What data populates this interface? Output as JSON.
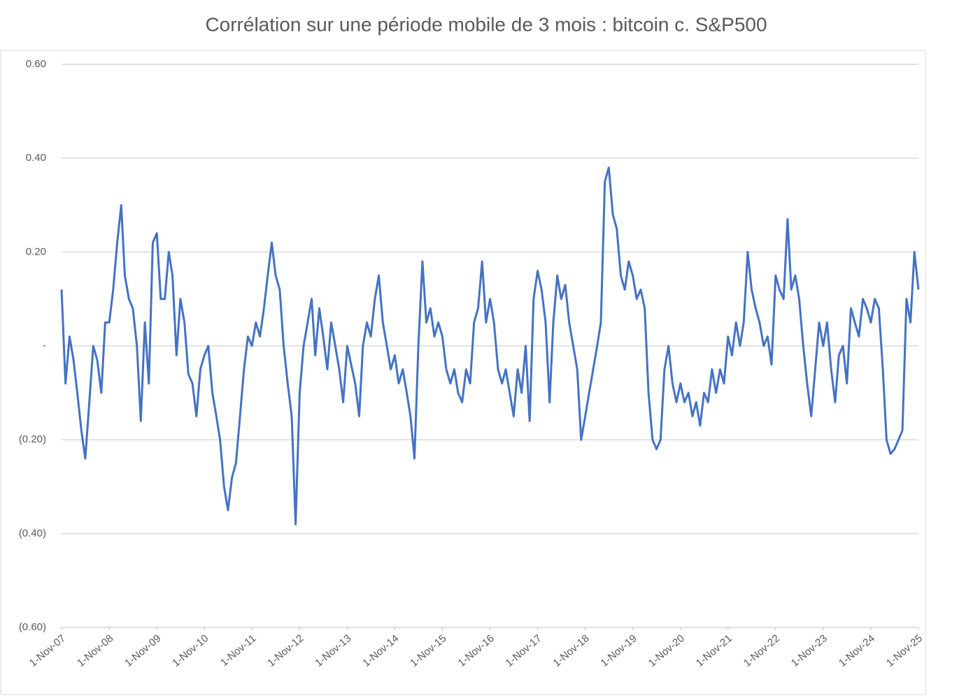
{
  "chart_data": {
    "type": "line",
    "title": "Corrélation sur une période mobile de 3 mois : bitcoin c. S&P500",
    "x": [
      "2007-11-01",
      "2007-12-01",
      "2008-01-01",
      "2008-02-01",
      "2008-03-01",
      "2008-04-01",
      "2008-05-01",
      "2008-06-01",
      "2008-07-01",
      "2008-08-01",
      "2008-09-01",
      "2008-10-01",
      "2008-11-01",
      "2008-12-01",
      "2009-01-01",
      "2009-02-01",
      "2009-03-01",
      "2009-04-01",
      "2009-05-01",
      "2009-06-01",
      "2009-07-01",
      "2009-08-01",
      "2009-09-01",
      "2009-10-01",
      "2009-11-01",
      "2009-12-01",
      "2010-01-01",
      "2010-02-01",
      "2010-03-01",
      "2010-04-01",
      "2010-05-01",
      "2010-06-01",
      "2010-07-01",
      "2010-08-01",
      "2010-09-01",
      "2010-10-01",
      "2010-11-01",
      "2010-12-01",
      "2011-01-01",
      "2011-02-01",
      "2011-03-01",
      "2011-04-01",
      "2011-05-01",
      "2011-06-01",
      "2011-07-01",
      "2011-08-01",
      "2011-09-01",
      "2011-10-01",
      "2011-11-01",
      "2011-12-01",
      "2012-01-01",
      "2012-02-01",
      "2012-03-01",
      "2012-04-01",
      "2012-05-01",
      "2012-06-01",
      "2012-07-01",
      "2012-08-01",
      "2012-09-01",
      "2012-10-01",
      "2012-11-01",
      "2012-12-01",
      "2013-01-01",
      "2013-02-01",
      "2013-03-01",
      "2013-04-01",
      "2013-05-01",
      "2013-06-01",
      "2013-07-01",
      "2013-08-01",
      "2013-09-01",
      "2013-10-01",
      "2013-11-01",
      "2013-12-01",
      "2014-01-01",
      "2014-02-01",
      "2014-03-01",
      "2014-04-01",
      "2014-05-01",
      "2014-06-01",
      "2014-07-01",
      "2014-08-01",
      "2014-09-01",
      "2014-10-01",
      "2014-11-01",
      "2014-12-01",
      "2015-01-01",
      "2015-02-01",
      "2015-03-01",
      "2015-04-01",
      "2015-05-01",
      "2015-06-01",
      "2015-07-01",
      "2015-08-01",
      "2015-09-01",
      "2015-10-01",
      "2015-11-01",
      "2015-12-01",
      "2016-01-01",
      "2016-02-01",
      "2016-03-01",
      "2016-04-01",
      "2016-05-01",
      "2016-06-01",
      "2016-07-01",
      "2016-08-01",
      "2016-09-01",
      "2016-10-01",
      "2016-11-01",
      "2016-12-01",
      "2017-01-01",
      "2017-02-01",
      "2017-03-01",
      "2017-04-01",
      "2017-05-01",
      "2017-06-01",
      "2017-07-01",
      "2017-08-01",
      "2017-09-01",
      "2017-10-01",
      "2017-11-01",
      "2017-12-01",
      "2018-01-01",
      "2018-02-01",
      "2018-03-01",
      "2018-04-01",
      "2018-05-01",
      "2018-06-01",
      "2018-07-01",
      "2018-08-01",
      "2018-09-01",
      "2018-10-01",
      "2018-11-01",
      "2018-12-01",
      "2019-01-01",
      "2019-02-01",
      "2019-03-01",
      "2019-04-01",
      "2019-05-01",
      "2019-06-01",
      "2019-07-01",
      "2019-08-01",
      "2019-09-01",
      "2019-10-01",
      "2019-11-01",
      "2019-12-01",
      "2020-01-01",
      "2020-02-01",
      "2020-03-01",
      "2020-04-01",
      "2020-05-01",
      "2020-06-01",
      "2020-07-01",
      "2020-08-01",
      "2020-09-01",
      "2020-10-01",
      "2020-11-01",
      "2020-12-01",
      "2021-01-01",
      "2021-02-01",
      "2021-03-01",
      "2021-04-01",
      "2021-05-01",
      "2021-06-01",
      "2021-07-01",
      "2021-08-01",
      "2021-09-01",
      "2021-10-01",
      "2021-11-01",
      "2021-12-01",
      "2022-01-01",
      "2022-02-01",
      "2022-03-01",
      "2022-04-01",
      "2022-05-01",
      "2022-06-01",
      "2022-07-01",
      "2022-08-01",
      "2022-09-01",
      "2022-10-01",
      "2022-11-01",
      "2022-12-01",
      "2023-01-01",
      "2023-02-01",
      "2023-03-01",
      "2023-04-01",
      "2023-05-01",
      "2023-06-01",
      "2023-07-01",
      "2023-08-01",
      "2023-09-01",
      "2023-10-01",
      "2023-11-01",
      "2023-12-01",
      "2024-01-01",
      "2024-02-01",
      "2024-03-01",
      "2024-04-01",
      "2024-05-01",
      "2024-06-01",
      "2024-07-01",
      "2024-08-01",
      "2024-09-01",
      "2024-10-01",
      "2024-11-01",
      "2024-12-01",
      "2025-01-01",
      "2025-02-01",
      "2025-03-01",
      "2025-04-01",
      "2025-05-01",
      "2025-06-01",
      "2025-07-01",
      "2025-08-01",
      "2025-09-01",
      "2025-10-01",
      "2025-11-01"
    ],
    "series": [
      {
        "color": "#4472c4",
        "values": [
          0.12,
          -0.08,
          0.02,
          -0.03,
          -0.1,
          -0.18,
          -0.24,
          -0.12,
          0.0,
          -0.03,
          -0.1,
          0.05,
          0.05,
          0.12,
          0.22,
          0.3,
          0.15,
          0.1,
          0.08,
          0.0,
          -0.16,
          0.05,
          -0.08,
          0.22,
          0.24,
          0.1,
          0.1,
          0.2,
          0.15,
          -0.02,
          0.1,
          0.05,
          -0.06,
          -0.08,
          -0.15,
          -0.05,
          -0.02,
          0.0,
          -0.1,
          -0.15,
          -0.2,
          -0.3,
          -0.35,
          -0.28,
          -0.25,
          -0.15,
          -0.05,
          0.02,
          0.0,
          0.05,
          0.02,
          0.08,
          0.15,
          0.22,
          0.15,
          0.12,
          0.0,
          -0.08,
          -0.15,
          -0.38,
          -0.1,
          0.0,
          0.05,
          0.1,
          -0.02,
          0.08,
          0.02,
          -0.05,
          0.05,
          0.0,
          -0.05,
          -0.12,
          0.0,
          -0.04,
          -0.08,
          -0.15,
          0.0,
          0.05,
          0.02,
          0.1,
          0.15,
          0.05,
          0.0,
          -0.05,
          -0.02,
          -0.08,
          -0.05,
          -0.1,
          -0.15,
          -0.24,
          0.0,
          0.18,
          0.05,
          0.08,
          0.02,
          0.05,
          0.02,
          -0.05,
          -0.08,
          -0.05,
          -0.1,
          -0.12,
          -0.05,
          -0.08,
          0.05,
          0.08,
          0.18,
          0.05,
          0.1,
          0.05,
          -0.05,
          -0.08,
          -0.05,
          -0.1,
          -0.15,
          -0.05,
          -0.1,
          0.0,
          -0.16,
          0.1,
          0.16,
          0.12,
          0.05,
          -0.12,
          0.05,
          0.15,
          0.1,
          0.13,
          0.05,
          0.0,
          -0.05,
          -0.2,
          -0.15,
          -0.1,
          -0.05,
          0.0,
          0.05,
          0.35,
          0.38,
          0.28,
          0.25,
          0.15,
          0.12,
          0.18,
          0.15,
          0.1,
          0.12,
          0.08,
          -0.1,
          -0.2,
          -0.22,
          -0.2,
          -0.05,
          0.0,
          -0.08,
          -0.12,
          -0.08,
          -0.12,
          -0.1,
          -0.15,
          -0.12,
          -0.17,
          -0.1,
          -0.12,
          -0.05,
          -0.1,
          -0.05,
          -0.08,
          0.02,
          -0.02,
          0.05,
          0.0,
          0.05,
          0.2,
          0.12,
          0.08,
          0.05,
          0.0,
          0.02,
          -0.04,
          0.15,
          0.12,
          0.1,
          0.27,
          0.12,
          0.15,
          0.1,
          0.0,
          -0.08,
          -0.15,
          -0.05,
          0.05,
          0.0,
          0.05,
          -0.05,
          -0.12,
          -0.02,
          0.0,
          -0.08,
          0.08,
          0.05,
          0.02,
          0.1,
          0.08,
          0.05,
          0.1,
          0.08,
          -0.05,
          -0.2,
          -0.23,
          -0.22,
          -0.2,
          -0.18,
          0.1,
          0.05,
          0.2,
          0.12
        ]
      }
    ],
    "xlim": [
      "2007-11-01",
      "2025-11-01"
    ],
    "xticks": [
      {
        "value": "2007-11-01",
        "label": "1-Nov-07"
      },
      {
        "value": "2008-11-01",
        "label": "1-Nov-08"
      },
      {
        "value": "2009-11-01",
        "label": "1-Nov-09"
      },
      {
        "value": "2010-11-01",
        "label": "1-Nov-10"
      },
      {
        "value": "2011-11-01",
        "label": "1-Nov-11"
      },
      {
        "value": "2012-11-01",
        "label": "1-Nov-12"
      },
      {
        "value": "2013-11-01",
        "label": "1-Nov-13"
      },
      {
        "value": "2014-11-01",
        "label": "1-Nov-14"
      },
      {
        "value": "2015-11-01",
        "label": "1-Nov-15"
      },
      {
        "value": "2016-11-01",
        "label": "1-Nov-16"
      },
      {
        "value": "2017-11-01",
        "label": "1-Nov-17"
      },
      {
        "value": "2018-11-01",
        "label": "1-Nov-18"
      },
      {
        "value": "2019-11-01",
        "label": "1-Nov-19"
      },
      {
        "value": "2020-11-01",
        "label": "1-Nov-20"
      },
      {
        "value": "2021-11-01",
        "label": "1-Nov-21"
      },
      {
        "value": "2022-11-01",
        "label": "1-Nov-22"
      },
      {
        "value": "2023-11-01",
        "label": "1-Nov-23"
      },
      {
        "value": "2024-11-01",
        "label": "1-Nov-24"
      },
      {
        "value": "2025-11-01",
        "label": "1-Nov-25"
      }
    ],
    "ylim": [
      -0.6,
      0.6
    ],
    "yticks": [
      {
        "value": -0.6,
        "label": "(0.60)"
      },
      {
        "value": -0.4,
        "label": "(0.40)"
      },
      {
        "value": -0.2,
        "label": "(0.20)"
      },
      {
        "value": 0,
        "label": "-"
      },
      {
        "value": 0.2,
        "label": "0.20"
      },
      {
        "value": 0.4,
        "label": "0.40"
      },
      {
        "value": 0.6,
        "label": "0.60"
      }
    ],
    "grid": true
  }
}
